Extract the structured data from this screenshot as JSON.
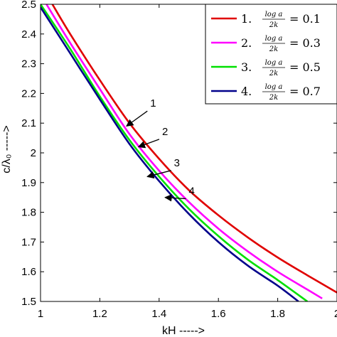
{
  "chart_data": {
    "type": "line",
    "xlabel": "kH ----->",
    "ylabel": "c/λ₀ ----->",
    "xlim": [
      1,
      2
    ],
    "ylim": [
      1.5,
      2.5
    ],
    "xticks": [
      "1",
      "1.2",
      "1.4",
      "1.6",
      "1.8",
      "2"
    ],
    "yticks": [
      "1.5",
      "1.6",
      "1.7",
      "1.8",
      "1.9",
      "2",
      "2.1",
      "2.2",
      "2.3",
      "2.4",
      "2.5"
    ],
    "grid": false,
    "legend_position": "top-right",
    "series": [
      {
        "name": "1.",
        "legend_label": {
          "index": "1.",
          "numerator": "log a",
          "denominator": "2k",
          "value": "= 0.1"
        },
        "color": "#e00000",
        "x": [
          1.04,
          1.1,
          1.2,
          1.3,
          1.4,
          1.5,
          1.6,
          1.7,
          1.8,
          1.9,
          2.0
        ],
        "y": [
          2.5,
          2.4,
          2.245,
          2.1,
          1.98,
          1.875,
          1.79,
          1.715,
          1.648,
          1.588,
          1.53
        ]
      },
      {
        "name": "2.",
        "legend_label": {
          "index": "2.",
          "numerator": "log a",
          "denominator": "2k",
          "value": "= 0.3"
        },
        "color": "#ff00ff",
        "x": [
          1.02,
          1.1,
          1.2,
          1.3,
          1.4,
          1.5,
          1.6,
          1.7,
          1.8,
          1.9,
          1.95
        ],
        "y": [
          2.5,
          2.37,
          2.215,
          2.063,
          1.94,
          1.835,
          1.745,
          1.668,
          1.6,
          1.54,
          1.51
        ]
      },
      {
        "name": "3.",
        "legend_label": {
          "index": "3.",
          "numerator": "log a",
          "denominator": "2k",
          "value": "= 0.5"
        },
        "color": "#00e000",
        "x": [
          1.0,
          1.1,
          1.2,
          1.3,
          1.4,
          1.5,
          1.6,
          1.7,
          1.8,
          1.9
        ],
        "y": [
          2.5,
          2.35,
          2.19,
          2.043,
          1.92,
          1.812,
          1.72,
          1.64,
          1.572,
          1.5
        ]
      },
      {
        "name": "4.",
        "legend_label": {
          "index": "4.",
          "numerator": "log a",
          "denominator": "2k",
          "value": "= 0.7"
        },
        "color": "#00008b",
        "x": [
          1.0,
          1.1,
          1.2,
          1.3,
          1.4,
          1.5,
          1.6,
          1.7,
          1.8,
          1.87
        ],
        "y": [
          2.49,
          2.335,
          2.18,
          2.03,
          1.905,
          1.795,
          1.7,
          1.62,
          1.553,
          1.5
        ]
      }
    ],
    "annotations": [
      {
        "text": "1",
        "text_x": 1.37,
        "text_y": 2.155,
        "point_x": 1.29,
        "point_y": 2.09
      },
      {
        "text": "2",
        "text_x": 1.41,
        "text_y": 2.06,
        "point_x": 1.33,
        "point_y": 2.02
      },
      {
        "text": "3",
        "text_x": 1.45,
        "text_y": 1.955,
        "point_x": 1.36,
        "point_y": 1.92
      },
      {
        "text": "4",
        "text_x": 1.5,
        "text_y": 1.86,
        "point_x": 1.42,
        "point_y": 1.85
      }
    ]
  }
}
